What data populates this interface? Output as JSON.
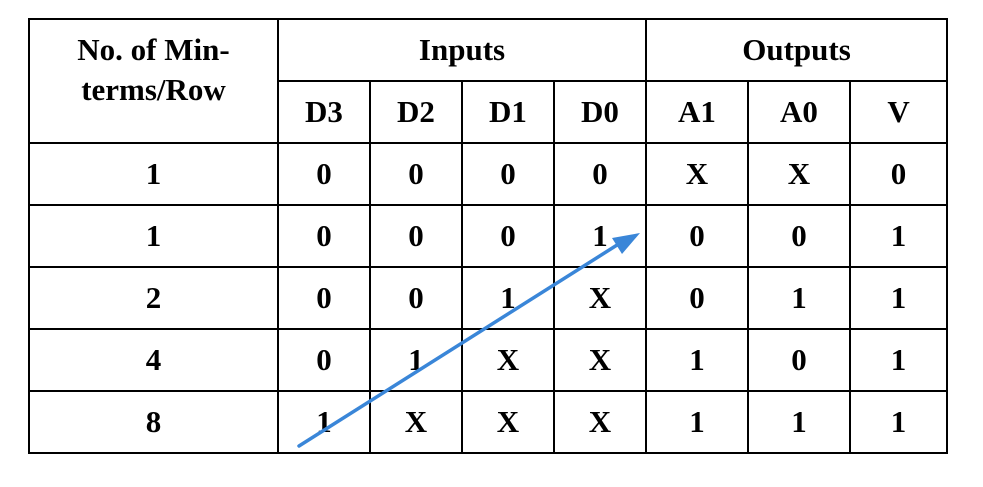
{
  "table": {
    "header_rowcount_line1": "No. of Min-",
    "header_rowcount_line2": "terms/Row",
    "header_inputs": "Inputs",
    "header_outputs": "Outputs",
    "columns": [
      "D3",
      "D2",
      "D1",
      "D0",
      "A1",
      "A0",
      "V"
    ],
    "rows": [
      {
        "count": "1",
        "cells": [
          "0",
          "0",
          "0",
          "0",
          "X",
          "X",
          "0"
        ]
      },
      {
        "count": "1",
        "cells": [
          "0",
          "0",
          "0",
          "1",
          "0",
          "0",
          "1"
        ]
      },
      {
        "count": "2",
        "cells": [
          "0",
          "0",
          "1",
          "X",
          "0",
          "1",
          "1"
        ]
      },
      {
        "count": "4",
        "cells": [
          "0",
          "1",
          "X",
          "X",
          "1",
          "0",
          "1"
        ]
      },
      {
        "count": "8",
        "cells": [
          "1",
          "X",
          "X",
          "X",
          "1",
          "1",
          "1"
        ]
      }
    ]
  },
  "annotation": {
    "arrow_color": "#3a86d8"
  }
}
